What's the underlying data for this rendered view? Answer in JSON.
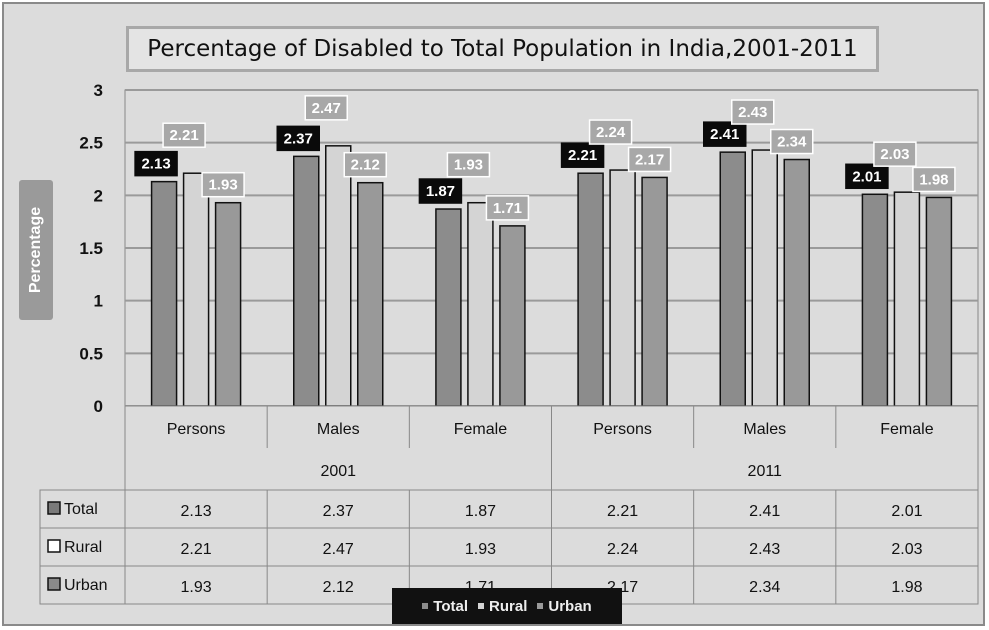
{
  "chart_data": {
    "type": "bar",
    "title": "Percentage of Disabled to Total Population in India,2001-2011",
    "ylabel": "Percentage",
    "xlabel": "",
    "ylim": [
      0,
      3
    ],
    "yticks": [
      "0",
      "0.5",
      "1",
      "1.5",
      "2",
      "2.5",
      "3"
    ],
    "groups": [
      {
        "label": "2001",
        "categories": [
          "Persons",
          "Males",
          "Female"
        ]
      },
      {
        "label": "2011",
        "categories": [
          "Persons",
          "Males",
          "Female"
        ]
      }
    ],
    "categories": [
      "Persons",
      "Males",
      "Female",
      "Persons",
      "Males",
      "Female"
    ],
    "series": [
      {
        "name": "Total",
        "color": "#8c8c8c",
        "values": [
          2.13,
          2.37,
          1.87,
          2.21,
          2.41,
          2.01
        ]
      },
      {
        "name": "Rural",
        "color": "#d4d4d4",
        "values": [
          2.21,
          2.47,
          1.93,
          2.24,
          2.43,
          2.03
        ]
      },
      {
        "name": "Urban",
        "color": "#999999",
        "values": [
          1.93,
          2.12,
          1.71,
          2.17,
          2.34,
          1.98
        ]
      }
    ],
    "value_labels": [
      [
        "2.13",
        "2.37",
        "1.87",
        "2.21",
        "2.41",
        "2.01"
      ],
      [
        "2.21",
        "2.47",
        "1.93",
        "2.24",
        "2.43",
        "2.03"
      ],
      [
        "1.93",
        "2.12",
        "1.71",
        "2.17",
        "2.34",
        "1.98"
      ]
    ],
    "grid": true,
    "legend": "bottom",
    "data_table": true
  }
}
